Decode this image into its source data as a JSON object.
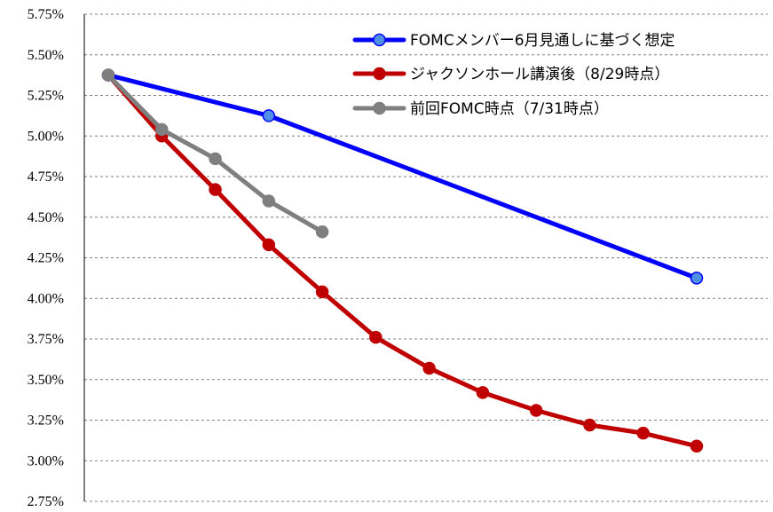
{
  "chart_data": {
    "type": "line",
    "title": "",
    "xlabel": "",
    "ylabel": "",
    "ylim": [
      2.75,
      5.75
    ],
    "y_ticks": [
      "5.75%",
      "5.50%",
      "5.25%",
      "5.00%",
      "4.75%",
      "4.50%",
      "4.25%",
      "4.00%",
      "3.75%",
      "3.50%",
      "3.25%",
      "3.00%",
      "2.75%"
    ],
    "y_tick_values": [
      5.75,
      5.5,
      5.25,
      5.0,
      4.75,
      4.5,
      4.25,
      4.0,
      3.75,
      3.5,
      3.25,
      3.0,
      2.75
    ],
    "x_count": 12,
    "x_tick_labels_shown": false,
    "grid": "horizontal dashed",
    "legend_position": "top-right",
    "series": [
      {
        "name": "FOMCメンバー6月見通しに基づく想定",
        "color": "#0000ff",
        "marker_fill": "#4f8fe6",
        "points": [
          [
            0,
            5.375
          ],
          [
            3,
            5.125
          ],
          [
            11,
            4.125
          ]
        ]
      },
      {
        "name": "ジャクソンホール講演後（8/29時点）",
        "color": "#c00000",
        "marker_fill": "#c00000",
        "points": [
          [
            0,
            5.375
          ],
          [
            1,
            5.0
          ],
          [
            2,
            4.67
          ],
          [
            3,
            4.33
          ],
          [
            4,
            4.04
          ],
          [
            5,
            3.76
          ],
          [
            6,
            3.57
          ],
          [
            7,
            3.42
          ],
          [
            8,
            3.31
          ],
          [
            9,
            3.22
          ],
          [
            10,
            3.17
          ],
          [
            11,
            3.09
          ]
        ]
      },
      {
        "name": "前回FOMC時点（7/31時点）",
        "color": "#7f7f7f",
        "marker_fill": "#7f7f7f",
        "points": [
          [
            0,
            5.375
          ],
          [
            1,
            5.04
          ],
          [
            2,
            4.86
          ],
          [
            3,
            4.6
          ],
          [
            4,
            4.41
          ]
        ]
      }
    ]
  }
}
